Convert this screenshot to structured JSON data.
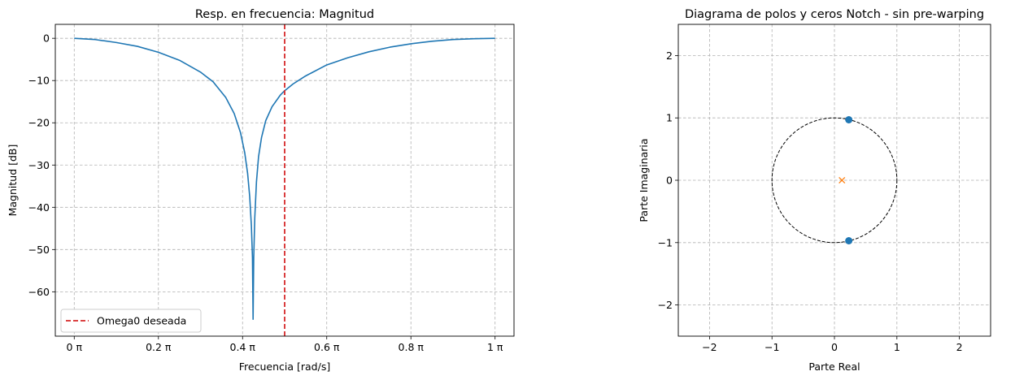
{
  "chart_data": [
    {
      "type": "line",
      "title": "Resp. en frecuencia: Magnitud",
      "xlabel": "Frecuencia [rad/s]",
      "ylabel": "Magnitud [dB]",
      "xlim": [
        -0.045,
        1.045
      ],
      "ylim": [
        -70.5,
        3.3
      ],
      "grid": true,
      "x_ticks": [
        {
          "value": 0.0,
          "label": "0 π"
        },
        {
          "value": 0.2,
          "label": "0.2 π"
        },
        {
          "value": 0.4,
          "label": "0.4 π"
        },
        {
          "value": 0.6,
          "label": "0.6 π"
        },
        {
          "value": 0.8,
          "label": "0.8 π"
        },
        {
          "value": 1.0,
          "label": "1 π"
        }
      ],
      "y_ticks": [
        {
          "value": 0,
          "label": "0"
        },
        {
          "value": -10,
          "label": "−10"
        },
        {
          "value": -20,
          "label": "−20"
        },
        {
          "value": -30,
          "label": "−30"
        },
        {
          "value": -40,
          "label": "−40"
        },
        {
          "value": -50,
          "label": "−50"
        },
        {
          "value": -60,
          "label": "−60"
        }
      ],
      "series": [
        {
          "color": "#1f77b4",
          "x": [
            0.0,
            0.05,
            0.1,
            0.15,
            0.2,
            0.25,
            0.3,
            0.33,
            0.36,
            0.38,
            0.395,
            0.405,
            0.412,
            0.417,
            0.421,
            0.4235,
            0.425,
            0.4265,
            0.429,
            0.433,
            0.438,
            0.445,
            0.455,
            0.47,
            0.49,
            0.5,
            0.52,
            0.55,
            0.6,
            0.65,
            0.7,
            0.75,
            0.8,
            0.85,
            0.9,
            0.95,
            1.0
          ],
          "y": [
            0.0,
            -0.3,
            -1.0,
            -1.9,
            -3.3,
            -5.2,
            -8.0,
            -10.3,
            -14.0,
            -17.8,
            -22.3,
            -27.0,
            -32.0,
            -37.5,
            -44.5,
            -52.0,
            -66.5,
            -52.0,
            -42.5,
            -34.0,
            -28.0,
            -23.5,
            -19.5,
            -16.2,
            -13.4,
            -12.4,
            -10.8,
            -8.9,
            -6.3,
            -4.6,
            -3.2,
            -2.1,
            -1.3,
            -0.7,
            -0.3,
            -0.1,
            0.0
          ]
        }
      ],
      "vline": {
        "x": 0.5,
        "color": "#d62728",
        "name": "Omega0 deseada"
      },
      "legend_position": "lower-left"
    },
    {
      "type": "scatter",
      "title": "Diagrama de polos y ceros Notch - sin pre-warping",
      "xlabel": "Parte Real",
      "ylabel": "Parte Imaginaria",
      "xlim": [
        -2.5,
        2.5
      ],
      "ylim": [
        -2.5,
        2.5
      ],
      "grid": true,
      "x_ticks": [
        {
          "value": -2,
          "label": "−2"
        },
        {
          "value": -1,
          "label": "−1"
        },
        {
          "value": 0,
          "label": "0"
        },
        {
          "value": 1,
          "label": "1"
        },
        {
          "value": 2,
          "label": "2"
        }
      ],
      "y_ticks": [
        {
          "value": -2,
          "label": "−2"
        },
        {
          "value": -1,
          "label": "−1"
        },
        {
          "value": 0,
          "label": "0"
        },
        {
          "value": 1,
          "label": "1"
        },
        {
          "value": 2,
          "label": "2"
        }
      ],
      "unit_circle": {
        "radius": 1,
        "color": "#000000"
      },
      "zeros": {
        "color": "#1f77b4",
        "points": [
          [
            0.23,
            0.97
          ],
          [
            0.23,
            -0.97
          ]
        ]
      },
      "poles": {
        "color": "#ff7f0e",
        "points": [
          [
            0.12,
            0.0
          ]
        ]
      }
    }
  ]
}
